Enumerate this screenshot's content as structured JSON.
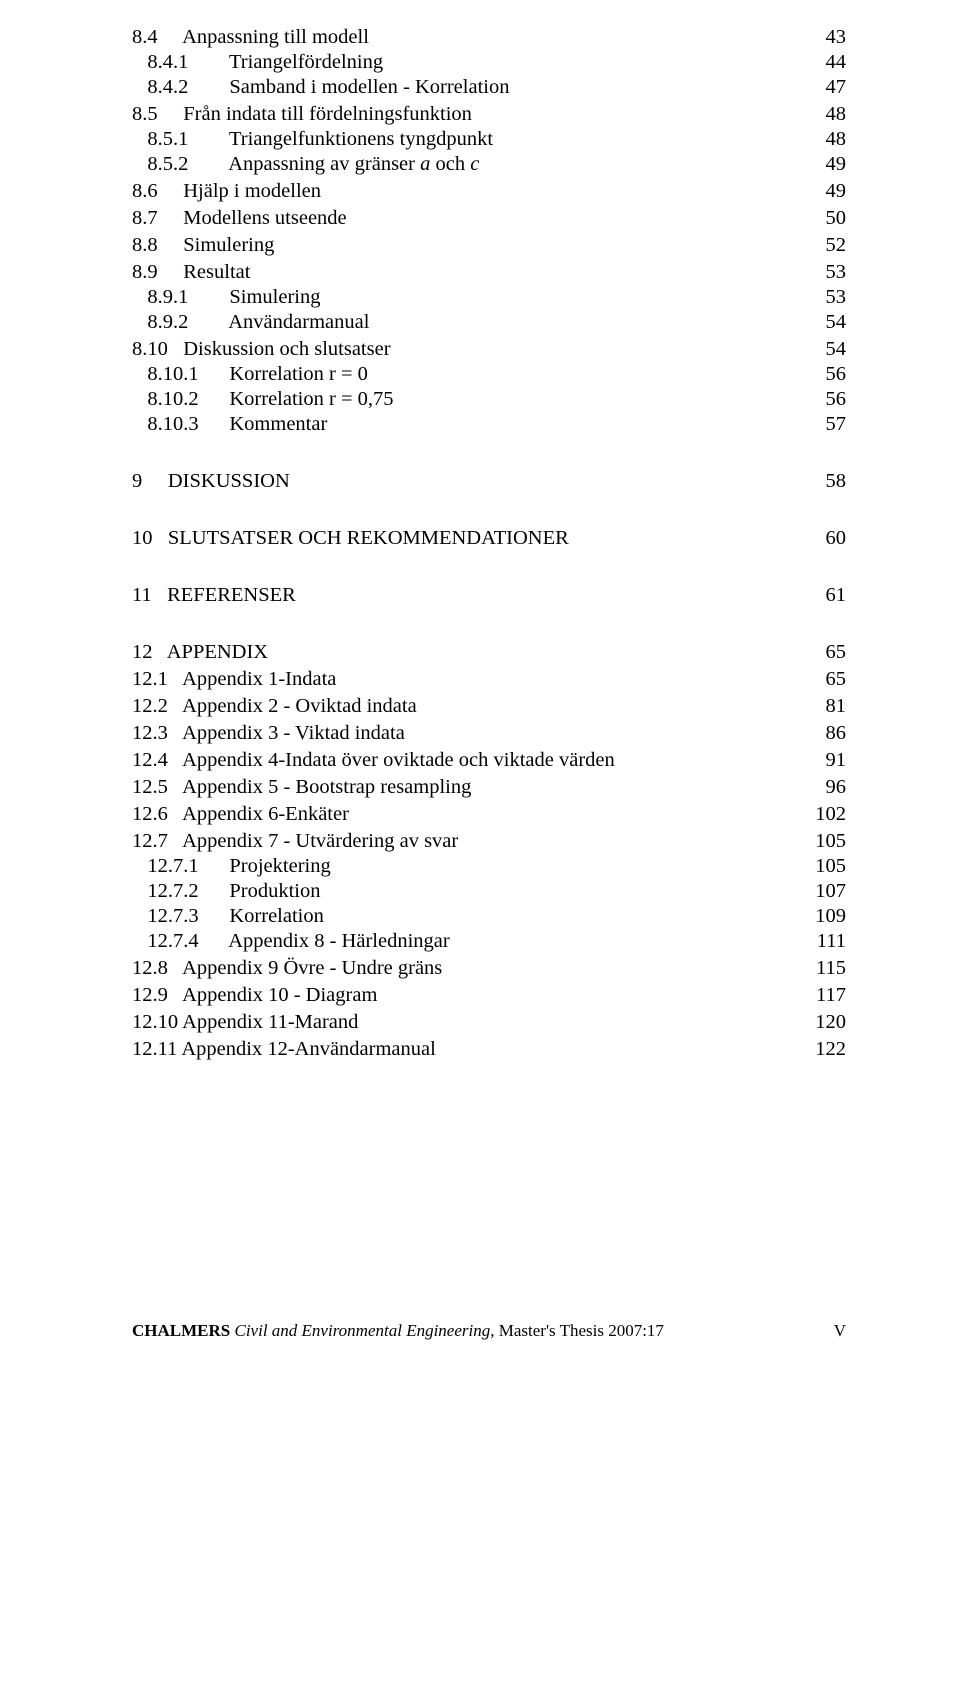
{
  "toc": [
    {
      "cls": "lvl1",
      "label": "8.4     Anpassning till modell",
      "page": "43"
    },
    {
      "cls": "lvl2",
      "label": "   8.4.1        Triangelfördelning",
      "page": "44"
    },
    {
      "cls": "lvl2",
      "label": "   8.4.2        Samband i modellen - Korrelation",
      "page": "47"
    },
    {
      "cls": "lvl1",
      "label": "8.5     Från indata till fördelningsfunktion",
      "page": "48"
    },
    {
      "cls": "lvl2",
      "label": "   8.5.1        Triangelfunktionens tyngdpunkt",
      "page": "48"
    },
    {
      "cls": "lvl2",
      "label": "   8.5.2        Anpassning av gränser a och c",
      "page": "49",
      "italic_a_c": true
    },
    {
      "cls": "lvl1",
      "label": "8.6     Hjälp i modellen",
      "page": "49"
    },
    {
      "cls": "lvl1",
      "label": "8.7     Modellens utseende",
      "page": "50"
    },
    {
      "cls": "lvl1",
      "label": "8.8     Simulering",
      "page": "52"
    },
    {
      "cls": "lvl1",
      "label": "8.9     Resultat",
      "page": "53"
    },
    {
      "cls": "lvl2",
      "label": "   8.9.1        Simulering",
      "page": "53"
    },
    {
      "cls": "lvl2",
      "label": "   8.9.2        Användarmanual",
      "page": "54"
    },
    {
      "cls": "lvl1",
      "label": "8.10   Diskussion och slutsatser",
      "page": "54"
    },
    {
      "cls": "lvl2",
      "label": "   8.10.1      Korrelation r = 0",
      "page": "56"
    },
    {
      "cls": "lvl2",
      "label": "   8.10.2      Korrelation r = 0,75",
      "page": "56"
    },
    {
      "cls": "lvl2",
      "label": "   8.10.3      Kommentar",
      "page": "57"
    },
    {
      "cls": "chapter",
      "label": "9     DISKUSSION",
      "page": "58"
    },
    {
      "cls": "chapter",
      "label": "10   SLUTSATSER OCH REKOMMENDATIONER",
      "page": "60"
    },
    {
      "cls": "chapter",
      "label": "11   REFERENSER",
      "page": "61"
    },
    {
      "cls": "chapter",
      "label": "12   APPENDIX",
      "page": "65"
    },
    {
      "cls": "lvl1",
      "label": "12.1   Appendix 1-Indata",
      "page": "65"
    },
    {
      "cls": "lvl1",
      "label": "12.2   Appendix 2 - Oviktad indata",
      "page": "81"
    },
    {
      "cls": "lvl1",
      "label": "12.3   Appendix 3 - Viktad indata",
      "page": "86"
    },
    {
      "cls": "lvl1",
      "label": "12.4   Appendix 4-Indata över oviktade och viktade värden",
      "page": "91"
    },
    {
      "cls": "lvl1",
      "label": "12.5   Appendix 5 - Bootstrap resampling",
      "page": "96"
    },
    {
      "cls": "lvl1",
      "label": "12.6   Appendix 6-Enkäter",
      "page": "102"
    },
    {
      "cls": "lvl1",
      "label": "12.7   Appendix 7 - Utvärdering av svar",
      "page": "105"
    },
    {
      "cls": "lvl2",
      "label": "   12.7.1      Projektering",
      "page": "105"
    },
    {
      "cls": "lvl2",
      "label": "   12.7.2      Produktion",
      "page": "107"
    },
    {
      "cls": "lvl2",
      "label": "   12.7.3      Korrelation",
      "page": "109"
    },
    {
      "cls": "lvl2",
      "label": "   12.7.4      Appendix 8 - Härledningar",
      "page": "111"
    },
    {
      "cls": "lvl1",
      "label": "12.8   Appendix 9 Övre - Undre gräns",
      "page": "115"
    },
    {
      "cls": "lvl1",
      "label": "12.9   Appendix 10 - Diagram",
      "page": "117"
    },
    {
      "cls": "lvl1",
      "label": "12.10 Appendix 11-Marand",
      "page": "120"
    },
    {
      "cls": "lvl1",
      "label": "12.11 Appendix 12-Användarmanual",
      "page": "122"
    }
  ],
  "footer": {
    "brand": "CHALMERS",
    "rest": " Civil and Environmental Engineering, ",
    "thesis": "Master's Thesis 2007:17",
    "pagenum": "V"
  }
}
